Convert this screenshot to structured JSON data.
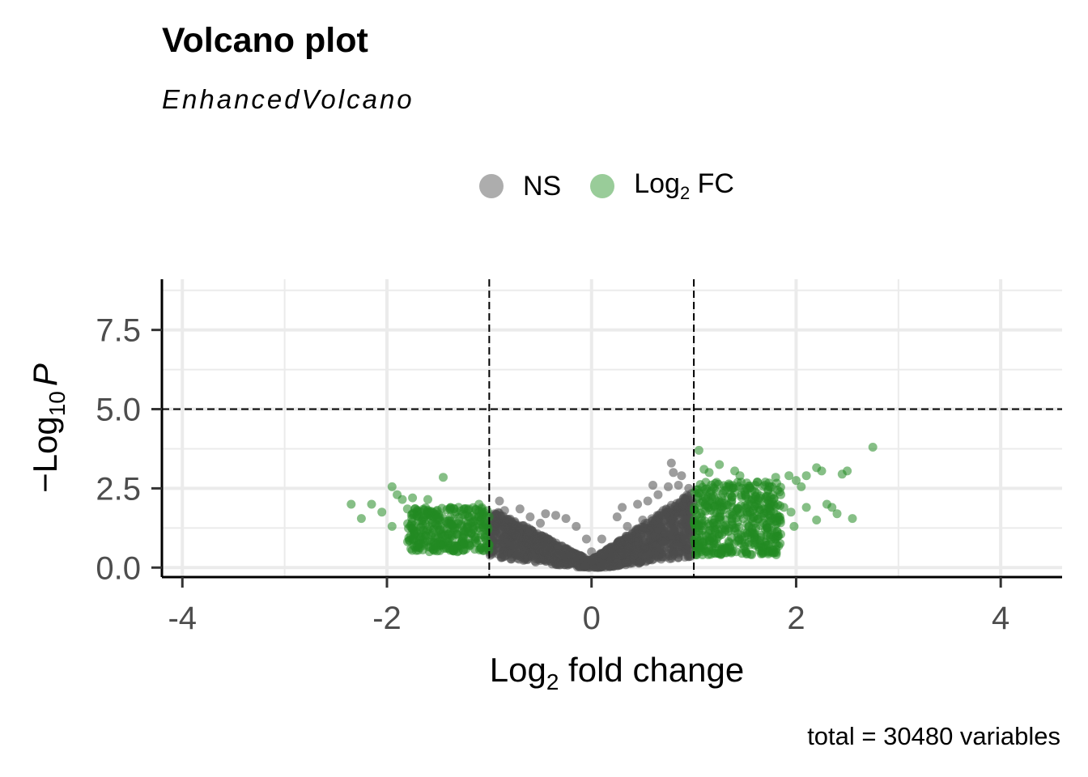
{
  "chart_data": {
    "type": "scatter",
    "title": "Volcano plot",
    "subtitle": "EnhancedVolcano",
    "xlabel": {
      "base": "Log",
      "sub": "2",
      "rest": " fold change"
    },
    "ylabel": {
      "prefix": "−Log",
      "sub": "10",
      "italic": "P"
    },
    "xlim": [
      -4.2,
      4.6
    ],
    "ylim": [
      -0.3,
      9.1
    ],
    "x_ticks": [
      -4,
      -2,
      0,
      2,
      4
    ],
    "x_tick_labels": [
      "-4",
      "-2",
      "0",
      "2",
      "4"
    ],
    "y_ticks": [
      0,
      2.5,
      5,
      7.5
    ],
    "y_tick_labels": [
      "0.0",
      "2.5",
      "5.0",
      "7.5"
    ],
    "grid": true,
    "fc_cutoff": 1,
    "p_cutoff": 5,
    "legend": {
      "position": "top",
      "entries": [
        {
          "label": "NS",
          "color": "#4d4d4d"
        },
        {
          "label": "Log",
          "sub": "2",
          "rest": " FC",
          "color": "#228b22"
        }
      ]
    },
    "caption": "total = 30480 variables",
    "series": [
      {
        "name": "NS",
        "color": "#4d4d4d",
        "points": [
          [
            -0.9,
            2.1
          ],
          [
            -0.85,
            1.8
          ],
          [
            -0.7,
            1.85
          ],
          [
            -0.6,
            1.6
          ],
          [
            -0.45,
            1.7
          ],
          [
            -0.35,
            1.65
          ],
          [
            -0.25,
            1.55
          ],
          [
            -0.15,
            1.3
          ],
          [
            -0.05,
            0.9
          ],
          [
            0.0,
            0.5
          ],
          [
            0.1,
            0.9
          ],
          [
            0.25,
            1.6
          ],
          [
            0.3,
            1.9
          ],
          [
            0.45,
            2.0
          ],
          [
            0.55,
            2.1
          ],
          [
            0.65,
            2.3
          ],
          [
            0.75,
            2.55
          ],
          [
            0.8,
            3.0
          ],
          [
            0.78,
            3.3
          ],
          [
            0.85,
            2.6
          ],
          [
            0.9,
            2.2
          ],
          [
            0.95,
            2.5
          ],
          [
            0.7,
            1.8
          ],
          [
            0.5,
            1.5
          ],
          [
            0.35,
            1.3
          ],
          [
            -0.5,
            1.4
          ],
          [
            -0.8,
            1.5
          ],
          [
            -0.95,
            1.3
          ],
          [
            0.6,
            2.6
          ],
          [
            0.88,
            2.9
          ]
        ],
        "clusters": [
          {
            "x_range": [
              -1,
              1
            ],
            "y_shape": "v",
            "count": 1600
          }
        ]
      },
      {
        "name": "Log2 FC",
        "color": "#228b22",
        "points": [
          [
            -2.35,
            2.0
          ],
          [
            -2.25,
            1.55
          ],
          [
            -2.15,
            2.0
          ],
          [
            -2.05,
            1.75
          ],
          [
            -1.95,
            2.55
          ],
          [
            -1.9,
            2.3
          ],
          [
            -1.85,
            2.15
          ],
          [
            -1.8,
            1.85
          ],
          [
            -1.95,
            1.3
          ],
          [
            -1.75,
            2.2
          ],
          [
            -1.65,
            1.5
          ],
          [
            -1.6,
            2.15
          ],
          [
            -1.45,
            2.85
          ],
          [
            -1.55,
            1.1
          ],
          [
            -1.4,
            1.05
          ],
          [
            -1.3,
            1.9
          ],
          [
            -1.2,
            1.85
          ],
          [
            -1.1,
            2.0
          ],
          [
            1.05,
            3.7
          ],
          [
            1.1,
            3.1
          ],
          [
            1.15,
            3.0
          ],
          [
            1.2,
            2.5
          ],
          [
            1.35,
            2.6
          ],
          [
            1.5,
            2.3
          ],
          [
            1.6,
            2.6
          ],
          [
            1.7,
            2.7
          ],
          [
            1.8,
            2.85
          ],
          [
            1.85,
            2.3
          ],
          [
            1.93,
            2.9
          ],
          [
            2.0,
            2.75
          ],
          [
            2.05,
            2.55
          ],
          [
            2.1,
            2.9
          ],
          [
            2.2,
            3.15
          ],
          [
            2.25,
            3.05
          ],
          [
            2.3,
            2.0
          ],
          [
            2.4,
            1.7
          ],
          [
            2.45,
            2.95
          ],
          [
            2.5,
            3.05
          ],
          [
            2.55,
            1.55
          ],
          [
            2.75,
            3.8
          ],
          [
            1.25,
            3.25
          ],
          [
            1.4,
            3.05
          ],
          [
            1.45,
            2.9
          ],
          [
            1.62,
            2.7
          ],
          [
            1.75,
            2.0
          ],
          [
            1.88,
            1.9
          ],
          [
            1.98,
            1.3
          ],
          [
            1.85,
            1.05
          ],
          [
            2.1,
            1.9
          ],
          [
            2.2,
            1.5
          ],
          [
            1.95,
            1.75
          ],
          [
            2.35,
            1.9
          ],
          [
            1.7,
            1.2
          ],
          [
            1.78,
            1.55
          ],
          [
            1.15,
            0.85
          ],
          [
            1.3,
            0.65
          ]
        ],
        "clusters": [
          {
            "x_range": [
              -1.8,
              -1
            ],
            "y_range": [
              0.5,
              1.9
            ],
            "count": 330
          },
          {
            "x_range": [
              1,
              1.85
            ],
            "y_range": [
              0.4,
              2.7
            ],
            "count": 460
          }
        ]
      }
    ]
  }
}
